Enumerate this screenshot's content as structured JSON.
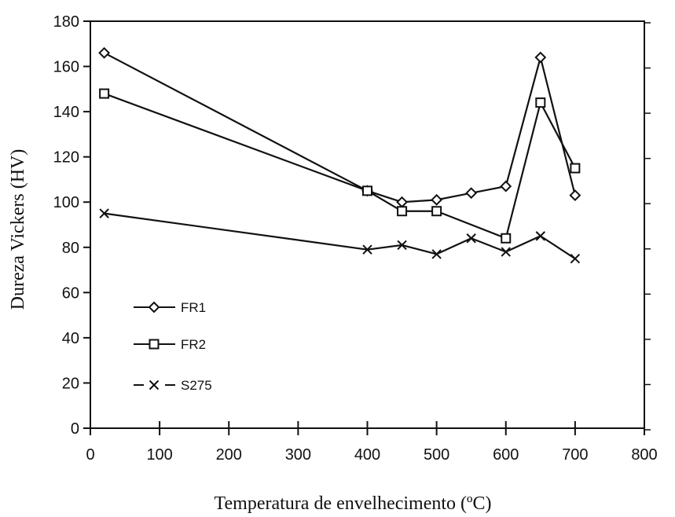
{
  "chart_data": {
    "type": "line",
    "xlabel": "Temperatura de envelhecimento (ºC)",
    "ylabel": "Dureza Vickers (HV)",
    "xlim": [
      0,
      800
    ],
    "ylim": [
      0,
      180
    ],
    "x_ticks": [
      "0",
      "100",
      "200",
      "300",
      "400",
      "500",
      "600",
      "700",
      "800"
    ],
    "y_ticks": [
      "0",
      "20",
      "40",
      "60",
      "80",
      "100",
      "120",
      "140",
      "160",
      "180"
    ],
    "grid": false,
    "legend_position": "bottom-left",
    "series": [
      {
        "name": "FR1",
        "marker": "diamond",
        "x": [
          20,
          400,
          450,
          500,
          550,
          600,
          650,
          700
        ],
        "y": [
          166,
          105,
          100,
          101,
          104,
          107,
          164,
          103
        ]
      },
      {
        "name": "FR2",
        "marker": "square",
        "x": [
          20,
          400,
          450,
          500,
          600,
          650,
          700
        ],
        "y": [
          148,
          105,
          96,
          96,
          84,
          144,
          115
        ]
      },
      {
        "name": "S275",
        "marker": "x",
        "x": [
          20,
          400,
          450,
          500,
          550,
          600,
          650,
          700
        ],
        "y": [
          95,
          79,
          81,
          77,
          84,
          78,
          85,
          75
        ]
      }
    ]
  }
}
